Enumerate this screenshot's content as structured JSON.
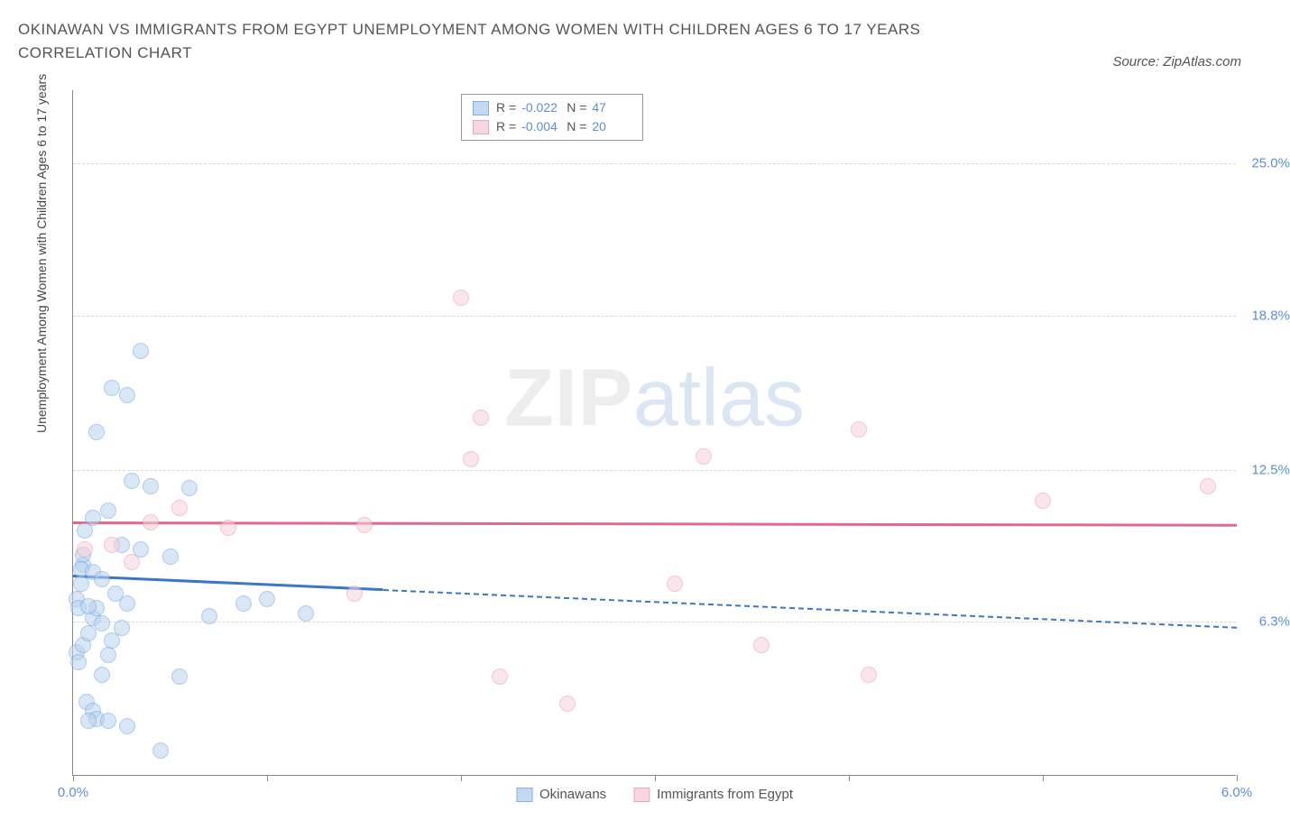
{
  "title": "OKINAWAN VS IMMIGRANTS FROM EGYPT UNEMPLOYMENT AMONG WOMEN WITH CHILDREN AGES 6 TO 17 YEARS CORRELATION CHART",
  "source_label": "Source: ZipAtlas.com",
  "y_axis_label": "Unemployment Among Women with Children Ages 6 to 17 years",
  "watermark_zip": "ZIP",
  "watermark_atlas": "atlas",
  "chart": {
    "type": "scatter",
    "xlim": [
      0,
      6.0
    ],
    "ylim": [
      0,
      28
    ],
    "x_tick_labels": {
      "0": "0.0%",
      "6": "6.0%"
    },
    "x_ticks": [
      0,
      1,
      2,
      3,
      4,
      5,
      6
    ],
    "y_grid": [
      {
        "value": 6.3,
        "label": "6.3%"
      },
      {
        "value": 12.5,
        "label": "12.5%"
      },
      {
        "value": 18.8,
        "label": "18.8%"
      },
      {
        "value": 25.0,
        "label": "25.0%"
      }
    ],
    "background_color": "#ffffff",
    "grid_color": "#d8d8d8",
    "axis_color": "#888888",
    "series": [
      {
        "key": "okinawans",
        "name": "Okinawans",
        "stroke": "#6fa3de",
        "fill": "#b9d3ee",
        "fill_opacity": 0.55,
        "marker_radius": 9,
        "R": "-0.022",
        "N": "47",
        "trend": {
          "x1": 0,
          "y1": 8.2,
          "x2": 6.0,
          "y2": 6.1,
          "solid_until_x": 1.6,
          "color": "#3b78c4"
        },
        "points": [
          [
            0.02,
            7.2
          ],
          [
            0.03,
            6.8
          ],
          [
            0.04,
            7.8
          ],
          [
            0.05,
            8.6
          ],
          [
            0.05,
            9.0
          ],
          [
            0.06,
            10.0
          ],
          [
            0.02,
            5.0
          ],
          [
            0.03,
            4.6
          ],
          [
            0.05,
            5.3
          ],
          [
            0.08,
            5.8
          ],
          [
            0.1,
            6.4
          ],
          [
            0.12,
            6.8
          ],
          [
            0.07,
            3.0
          ],
          [
            0.1,
            2.6
          ],
          [
            0.12,
            2.3
          ],
          [
            0.15,
            4.1
          ],
          [
            0.18,
            4.9
          ],
          [
            0.2,
            5.5
          ],
          [
            0.04,
            8.4
          ],
          [
            0.1,
            8.3
          ],
          [
            0.15,
            8.0
          ],
          [
            0.22,
            7.4
          ],
          [
            0.28,
            7.0
          ],
          [
            0.1,
            10.5
          ],
          [
            0.18,
            10.8
          ],
          [
            0.25,
            9.4
          ],
          [
            0.35,
            9.2
          ],
          [
            0.12,
            14.0
          ],
          [
            0.2,
            15.8
          ],
          [
            0.28,
            15.5
          ],
          [
            0.35,
            17.3
          ],
          [
            0.3,
            12.0
          ],
          [
            0.4,
            11.8
          ],
          [
            0.5,
            8.9
          ],
          [
            0.08,
            2.2
          ],
          [
            0.18,
            2.2
          ],
          [
            0.28,
            2.0
          ],
          [
            0.45,
            1.0
          ],
          [
            0.55,
            4.0
          ],
          [
            0.7,
            6.5
          ],
          [
            0.88,
            7.0
          ],
          [
            1.0,
            7.2
          ],
          [
            1.2,
            6.6
          ],
          [
            0.6,
            11.7
          ],
          [
            0.15,
            6.2
          ],
          [
            0.08,
            6.9
          ],
          [
            0.25,
            6.0
          ]
        ]
      },
      {
        "key": "egypt",
        "name": "Immigrants from Egypt",
        "stroke": "#e49bb0",
        "fill": "#f5d1da",
        "fill_opacity": 0.55,
        "marker_radius": 9,
        "R": "-0.004",
        "N": "20",
        "trend": {
          "x1": 0,
          "y1": 10.4,
          "x2": 6.0,
          "y2": 10.3,
          "color": "#e06a8c"
        },
        "points": [
          [
            0.06,
            9.2
          ],
          [
            0.2,
            9.4
          ],
          [
            0.55,
            10.9
          ],
          [
            0.8,
            10.1
          ],
          [
            0.4,
            10.3
          ],
          [
            1.5,
            10.2
          ],
          [
            1.45,
            7.4
          ],
          [
            2.05,
            12.9
          ],
          [
            2.0,
            19.5
          ],
          [
            2.1,
            14.6
          ],
          [
            2.2,
            4.0
          ],
          [
            2.55,
            2.9
          ],
          [
            3.1,
            7.8
          ],
          [
            3.25,
            13.0
          ],
          [
            3.55,
            5.3
          ],
          [
            4.1,
            4.1
          ],
          [
            4.05,
            14.1
          ],
          [
            5.0,
            11.2
          ],
          [
            5.85,
            11.8
          ],
          [
            0.3,
            8.7
          ]
        ]
      }
    ]
  },
  "legend_top": {
    "r_label": "R =",
    "n_label": "N ="
  },
  "bottom_legend": [
    {
      "name": "Okinawans",
      "series": "okinawans"
    },
    {
      "name": "Immigrants from Egypt",
      "series": "egypt"
    }
  ]
}
